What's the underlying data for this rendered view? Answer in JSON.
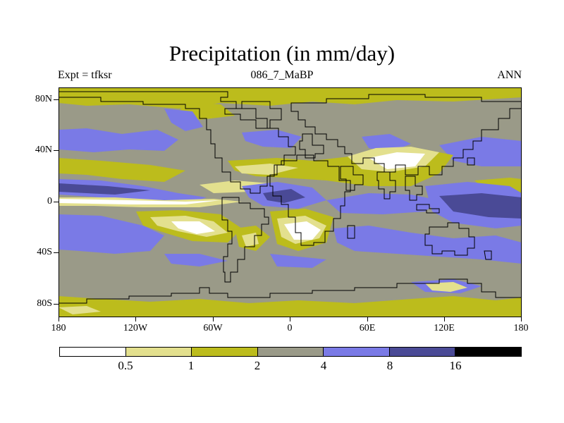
{
  "title": "Precipitation (in mm/day)",
  "subtitle_left": "Expt = tfksr",
  "subtitle_center": "086_7_MaBP",
  "subtitle_right": "ANN",
  "lat_labels": [
    "80N",
    "40N",
    "0",
    "40S",
    "80S"
  ],
  "lon_labels": [
    "180",
    "120W",
    "60W",
    "0",
    "60E",
    "120E",
    "180"
  ],
  "colorbar": {
    "levels": [
      "0.5",
      "1",
      "2",
      "4",
      "8",
      "16"
    ],
    "colors": [
      "#ffffff",
      "#e3e08e",
      "#bcbc1c",
      "#9a9a88",
      "#7a7ae6",
      "#4a4a96",
      "#000000"
    ]
  },
  "colors": {
    "very_low": "#ffffff",
    "low": "#e3e08e",
    "dry": "#bcbc1c",
    "moderate": "#9a9a88",
    "wet": "#7a7ae6",
    "very_wet": "#4a4a96",
    "extreme": "#000000",
    "coast": "#000000"
  }
}
